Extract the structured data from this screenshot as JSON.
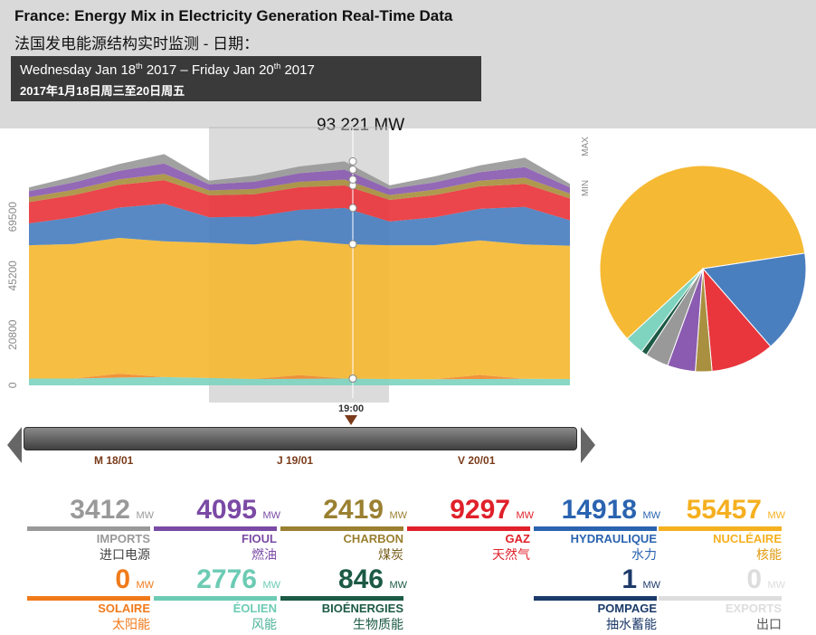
{
  "header": {
    "title_en": "France: Energy Mix in Electricity Generation Real-Time Data",
    "title_zh": "法国发电能源结构实时监测 - 日期：",
    "date_en_a": "Wednesday Jan 18",
    "date_en_sup_a": "th",
    "date_en_b": " 2017 – Friday Jan 20",
    "date_en_sup_b": "th",
    "date_en_c": " 2017",
    "date_zh": "2017年1月18日周三至20日周五"
  },
  "total_label": "93 221 MW",
  "cursor_label": "19:00",
  "timeline": {
    "days": [
      "M 18/01",
      "J 19/01",
      "V 20/01"
    ]
  },
  "chart_data": [
    {
      "type": "area",
      "stacked": true,
      "ylim": [
        -3000,
        100000
      ],
      "y_ticks": [
        "0",
        "20800",
        "45200",
        "69500"
      ],
      "max_label": "MAX",
      "min_label": "MIN",
      "x": [
        "Jan 18 00:00",
        "Jan 18 06:00",
        "Jan 18 12:00",
        "Jan 18 18:00",
        "Jan 19 00:00",
        "Jan 19 06:00",
        "Jan 19 12:00",
        "Jan 19 18:00",
        "Jan 20 00:00",
        "Jan 20 06:00",
        "Jan 20 12:00",
        "Jan 20 18:00",
        "Jan 21 00:00"
      ],
      "series": [
        {
          "name": "ÉOLIEN",
          "color": "#7fd4c0",
          "values": [
            2800,
            2800,
            3200,
            3400,
            3000,
            2600,
            2700,
            2800,
            2600,
            2500,
            2600,
            2700,
            2600
          ]
        },
        {
          "name": "SOLAIRE",
          "color": "#f08a2a",
          "values": [
            0,
            0,
            1600,
            0,
            0,
            0,
            1500,
            0,
            0,
            0,
            1700,
            0,
            0
          ]
        },
        {
          "name": "NUCLÉAIRE",
          "color": "#f5b933",
          "values": [
            55000,
            55500,
            56000,
            56000,
            55800,
            55500,
            55700,
            55457,
            55200,
            55300,
            55500,
            55400,
            55000
          ]
        },
        {
          "name": "HYDRAULIQUE",
          "color": "#4a7fbf",
          "values": [
            9000,
            11000,
            12500,
            15500,
            10500,
            11500,
            12500,
            14918,
            9800,
            11500,
            13000,
            15500,
            10500
          ]
        },
        {
          "name": "GAZ",
          "color": "#e8363c",
          "values": [
            8800,
            9200,
            9400,
            9700,
            9100,
            9200,
            9300,
            9297,
            8900,
            9200,
            9300,
            9500,
            9000
          ]
        },
        {
          "name": "CHARBON",
          "color": "#a89040",
          "values": [
            2000,
            2200,
            2300,
            2600,
            2000,
            2200,
            2300,
            2419,
            2000,
            2200,
            2300,
            2600,
            2000
          ]
        },
        {
          "name": "FIOUL",
          "color": "#8a5bb0",
          "values": [
            2500,
            3000,
            3500,
            4300,
            2500,
            3000,
            3500,
            4095,
            2500,
            3000,
            3500,
            4300,
            2500
          ]
        },
        {
          "name": "IMPORTS",
          "color": "#999999",
          "values": [
            1500,
            2500,
            2800,
            3900,
            1500,
            2500,
            2800,
            3412,
            1500,
            2500,
            2800,
            3900,
            1500
          ]
        }
      ]
    },
    {
      "type": "pie",
      "categories": [
        "NUCLÉAIRE",
        "HYDRAULIQUE",
        "GAZ",
        "CHARBON",
        "FIOUL",
        "IMPORTS",
        "BIOÉNERGIES",
        "ÉOLIEN"
      ],
      "values": [
        55457,
        14918,
        9297,
        2419,
        4095,
        3412,
        846,
        2776
      ],
      "colors": [
        "#f5b933",
        "#4a7fbf",
        "#e8363c",
        "#a89040",
        "#8a5bb0",
        "#999999",
        "#1c5a45",
        "#7fd4c0"
      ]
    }
  ],
  "stats": [
    {
      "value": "3412",
      "unit": "MW",
      "name": "IMPORTS",
      "zh": "进口电源",
      "color": "#999999",
      "zh_color": "#444444"
    },
    {
      "value": "4095",
      "unit": "MW",
      "name": "FIOUL",
      "zh": "燃油",
      "color": "#7a4aa5",
      "zh_color": "#7a4aa5"
    },
    {
      "value": "2419",
      "unit": "MW",
      "name": "CHARBON",
      "zh": "煤炭",
      "color": "#9a8030",
      "zh_color": "#7a6020"
    },
    {
      "value": "9297",
      "unit": "MW",
      "name": "GAZ",
      "zh": "天然气",
      "color": "#e0202a",
      "zh_color": "#e0202a"
    },
    {
      "value": "14918",
      "unit": "MW",
      "name": "HYDRAULIQUE",
      "zh": "水力",
      "color": "#2a63b0",
      "zh_color": "#2a63b0"
    },
    {
      "value": "55457",
      "unit": "MW",
      "name": "NUCLÉAIRE",
      "zh": "核能",
      "color": "#f5b020",
      "zh_color": "#e09a10"
    },
    {
      "value": "0",
      "unit": "MW",
      "name": "SOLAIRE",
      "zh": "太阳能",
      "color": "#f07a1a",
      "zh_color": "#f07a1a"
    },
    {
      "value": "2776",
      "unit": "MW",
      "name": "ÉOLIEN",
      "zh": "风能",
      "color": "#6ccbb4",
      "zh_color": "#4cb39a"
    },
    {
      "value": "846",
      "unit": "MW",
      "name": "BIOÉNERGIES",
      "zh": "生物质能",
      "color": "#1c5a45",
      "zh_color": "#1c5a45"
    },
    {
      "value": "",
      "unit": "",
      "name": "",
      "zh": "",
      "color": "#ffffff",
      "zh_color": "#ffffff"
    },
    {
      "value": "1",
      "unit": "MW",
      "name": "POMPAGE",
      "zh": "抽水蓄能",
      "color": "#1c3a6a",
      "zh_color": "#1c3a6a"
    },
    {
      "value": "0",
      "unit": "MW",
      "name": "EXPORTS",
      "zh": "出口",
      "color": "#dddddd",
      "zh_color": "#555555"
    }
  ]
}
